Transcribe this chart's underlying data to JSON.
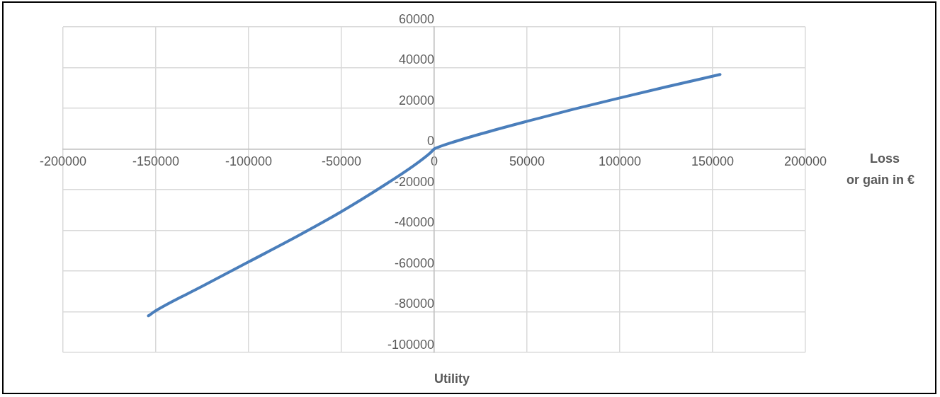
{
  "chart_data": {
    "type": "line",
    "annotations": [
      "Loss\nor gain in €",
      "Utility"
    ],
    "series": [
      {
        "color": "#4a7ebb",
        "x": [
          -154000,
          -150000,
          -125000,
          -100000,
          -75000,
          -50000,
          -25000,
          -10000,
          -2000,
          0,
          2000,
          10000,
          25000,
          50000,
          75000,
          100000,
          125000,
          154000
        ],
        "values": [
          -82000,
          -79500,
          -67500,
          -55500,
          -43500,
          -30800,
          -16700,
          -7500,
          -1800,
          0,
          800,
          3300,
          7400,
          13600,
          19500,
          25100,
          30500,
          36600
        ]
      }
    ],
    "xlim": [
      -200000,
      200000
    ],
    "xticks": [
      -200000,
      -150000,
      -100000,
      -50000,
      0,
      50000,
      100000,
      150000,
      200000
    ],
    "ylim": [
      -100000,
      60000
    ],
    "yticks": [
      -100000,
      -80000,
      -60000,
      -40000,
      -20000,
      0,
      20000,
      40000,
      60000
    ],
    "grid": true,
    "legend": false,
    "marker": "none",
    "line_style": "solid"
  }
}
